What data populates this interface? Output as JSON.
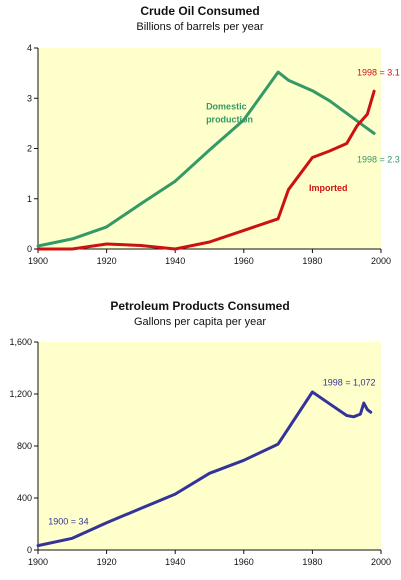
{
  "chart_data": [
    {
      "type": "line",
      "title": "Crude Oil Consumed",
      "subtitle": "Billions of barrels per year",
      "xlim": [
        1900,
        2000
      ],
      "ylim": [
        0,
        4
      ],
      "x_ticks": [
        "1900",
        "1920",
        "1940",
        "1960",
        "1980",
        "2000"
      ],
      "y_ticks": [
        "0",
        "1",
        "2",
        "3",
        "4"
      ],
      "grid": false,
      "background": "#ffffcc",
      "series": [
        {
          "name": "Domestic production",
          "color": "#339966",
          "x": [
            1900,
            1910,
            1920,
            1930,
            1940,
            1950,
            1960,
            1970,
            1973,
            1980,
            1985,
            1990,
            1995,
            1998
          ],
          "y": [
            0.06,
            0.2,
            0.44,
            0.9,
            1.35,
            1.97,
            2.57,
            3.52,
            3.36,
            3.15,
            2.95,
            2.7,
            2.45,
            2.3
          ]
        },
        {
          "name": "Imported",
          "color": "#cc1111",
          "x": [
            1900,
            1910,
            1920,
            1930,
            1940,
            1950,
            1960,
            1970,
            1973,
            1980,
            1985,
            1990,
            1993,
            1996,
            1998
          ],
          "y": [
            0.0,
            0.0,
            0.1,
            0.07,
            0.0,
            0.14,
            0.37,
            0.6,
            1.18,
            1.82,
            1.95,
            2.1,
            2.45,
            2.68,
            3.14
          ]
        }
      ],
      "annotations": [
        {
          "text": "1998 = 3.1",
          "color": "#cc1111",
          "x": 1993,
          "y": 3.45
        },
        {
          "text": "Domestic",
          "color": "#339966",
          "x": 1949,
          "y": 2.78,
          "bold": true
        },
        {
          "text": "production",
          "color": "#339966",
          "x": 1949,
          "y": 2.52,
          "bold": true
        },
        {
          "text": "1998 = 2.3",
          "color": "#339966",
          "x": 1993,
          "y": 1.72
        },
        {
          "text": "Imported",
          "color": "#cc1111",
          "x": 1979,
          "y": 1.15,
          "bold": true
        }
      ]
    },
    {
      "type": "line",
      "title": "Petroleum Products Consumed",
      "subtitle": "Gallons per capita per year",
      "xlim": [
        1900,
        2000
      ],
      "ylim": [
        0,
        1600
      ],
      "x_ticks": [
        "1900",
        "1920",
        "1940",
        "1960",
        "1980",
        "2000"
      ],
      "y_ticks": [
        "0",
        "400",
        "800",
        "1,200",
        "1,600"
      ],
      "grid": false,
      "background": "#ffffcc",
      "series": [
        {
          "color": "#333399",
          "x": [
            1900,
            1910,
            1920,
            1930,
            1940,
            1950,
            1960,
            1970,
            1980,
            1985,
            1990,
            1992,
            1994,
            1995,
            1996,
            1997
          ],
          "y": [
            34,
            90,
            210,
            320,
            430,
            590,
            690,
            815,
            1215,
            1125,
            1035,
            1025,
            1045,
            1130,
            1080,
            1060
          ]
        }
      ],
      "annotations": [
        {
          "text": "1998 = 1,072",
          "color": "#333399",
          "x": 1983,
          "y": 1265
        },
        {
          "text": "1900 = 34",
          "color": "#333399",
          "x": 1903,
          "y": 195
        }
      ]
    }
  ]
}
